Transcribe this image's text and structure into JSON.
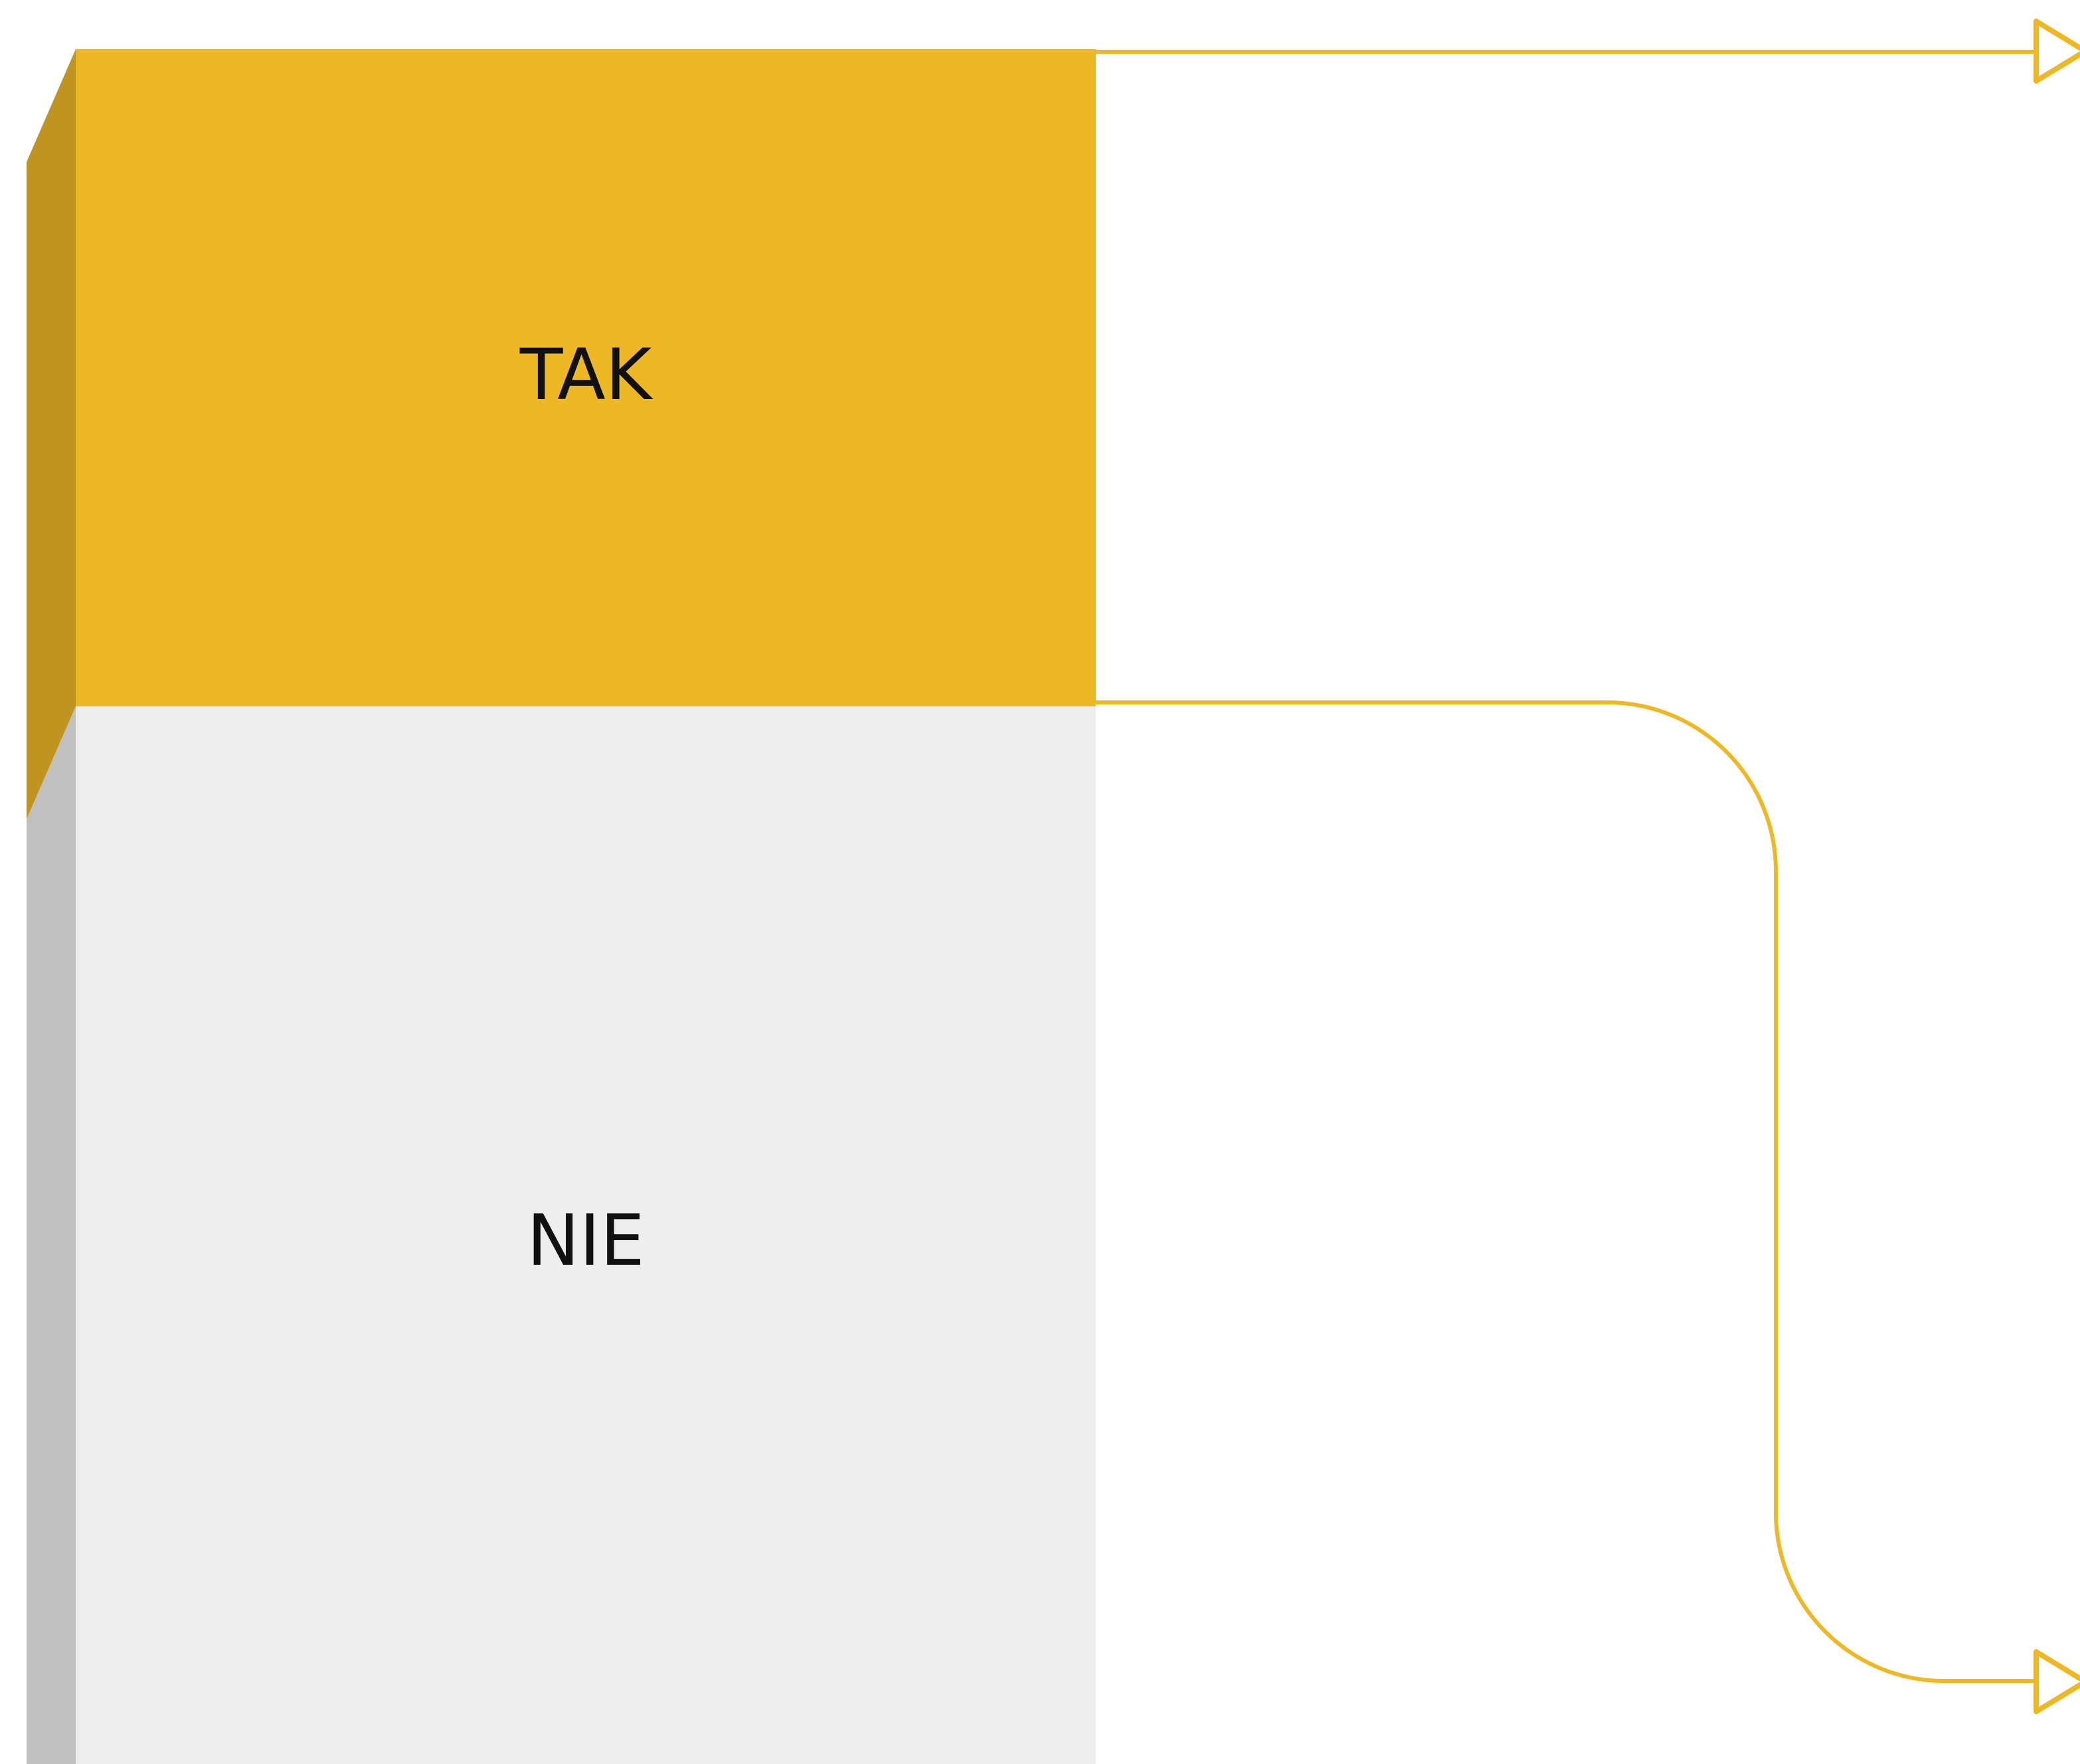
{
  "nodes": [
    {
      "label": "TAK"
    },
    {
      "label": "NIE"
    }
  ]
}
